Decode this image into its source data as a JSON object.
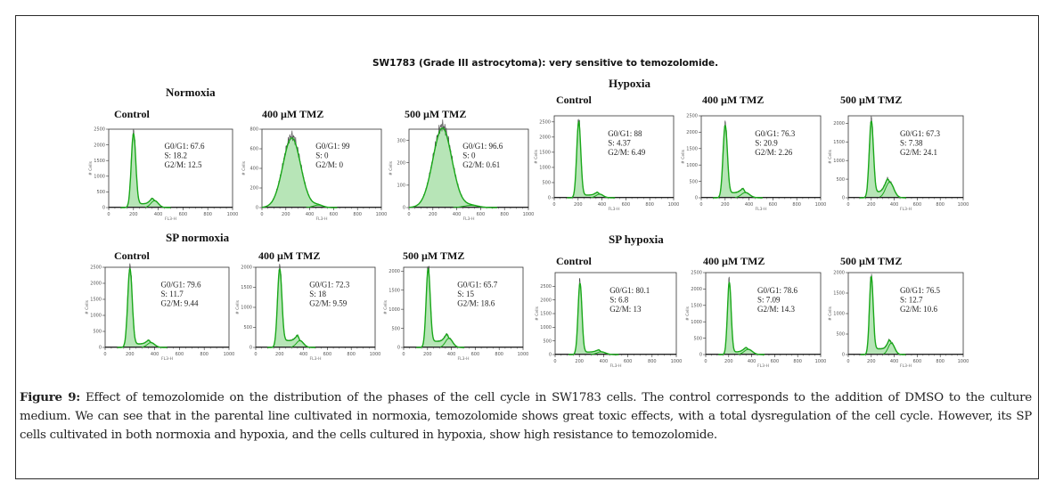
{
  "figure": {
    "main_title": "SW1783 (Grade III astrocytoma): very sensitive to temozolomide.",
    "caption_label": "Figure 9:",
    "caption_text": " Effect of temozolomide on the distribution of the phases of the cell cycle in SW1783 cells. The control corresponds to the addition of DMSO to the culture medium. We can see that in the parental line cultivated in normoxia, temozolomide shows great toxic effects, with a total dysregulation of the cell cycle. However, its SP cells cultivated in both normoxia and hypoxia, and the cells cultured in hypoxia, show high resistance to temozolomide."
  },
  "colors": {
    "fill_green": "#9fdc9f",
    "line_green": "#1aa81a",
    "raw_line": "#444444",
    "axis": "#333333"
  },
  "chart_data": [
    {
      "type": "area",
      "group": "Normoxia",
      "panel": "Control",
      "xlabel": "FL3-H",
      "ylabel": "# Cells",
      "xlim": [
        0,
        1000
      ],
      "ylim": [
        0,
        2500
      ],
      "xticks": [
        0,
        200,
        400,
        600,
        800,
        1000
      ],
      "yticks": [
        0,
        500,
        1000,
        1500,
        2000,
        2500
      ],
      "peaks": [
        {
          "x": 200,
          "y": 2350,
          "w": 18
        },
        {
          "x": 370,
          "y": 220,
          "w": 30
        }
      ],
      "s_phase_level": 120,
      "stats": {
        "G0/G1": 67.6,
        "S": 18.2,
        "G2/M": 12.5
      }
    },
    {
      "type": "area",
      "group": "Normoxia",
      "panel": "400 µM TMZ",
      "xlabel": "FL3-H",
      "ylabel": "# Cells",
      "xlim": [
        0,
        1000
      ],
      "ylim": [
        0,
        800
      ],
      "xticks": [
        0,
        200,
        400,
        600,
        800,
        1000
      ],
      "yticks": [
        0,
        200,
        400,
        600,
        800
      ],
      "peaks": [
        {
          "x": 250,
          "y": 710,
          "w": 75
        },
        {
          "x": 470,
          "y": 25,
          "w": 40
        }
      ],
      "s_phase_level": 0,
      "stats": {
        "G0/G1": 99,
        "S": 0,
        "G2/M": 0
      }
    },
    {
      "type": "area",
      "group": "Normoxia",
      "panel": "500 µM TMZ",
      "xlabel": "FL3-H",
      "ylabel": "# Cells",
      "xlim": [
        0,
        1000
      ],
      "ylim": [
        0,
        350
      ],
      "xticks": [
        0,
        200,
        400,
        600,
        800,
        1000
      ],
      "yticks": [
        0,
        100,
        200,
        300
      ],
      "peaks": [
        {
          "x": 280,
          "y": 355,
          "w": 80
        },
        {
          "x": 520,
          "y": 10,
          "w": 60
        }
      ],
      "s_phase_level": 0,
      "stats": {
        "G0/G1": 96.6,
        "S": 0,
        "G2/M": 0.61
      }
    },
    {
      "type": "area",
      "group": "Hypoxia",
      "panel": "Control",
      "xlabel": "FL3-H",
      "ylabel": "# Cells",
      "xlim": [
        0,
        1000
      ],
      "ylim": [
        0,
        2700
      ],
      "xticks": [
        0,
        200,
        400,
        600,
        800,
        1000
      ],
      "yticks": [
        0,
        500,
        1000,
        1500,
        2000,
        2500
      ],
      "peaks": [
        {
          "x": 205,
          "y": 2500,
          "w": 17
        },
        {
          "x": 380,
          "y": 120,
          "w": 30
        }
      ],
      "s_phase_level": 90,
      "stats": {
        "G0/G1": 88,
        "S": 4.37,
        "G2/M": 6.49
      }
    },
    {
      "type": "area",
      "group": "Hypoxia",
      "panel": "400 µM TMZ",
      "xlabel": "FL3-H",
      "ylabel": "# Cells",
      "xlim": [
        0,
        1000
      ],
      "ylim": [
        0,
        2500
      ],
      "xticks": [
        0,
        200,
        400,
        600,
        800,
        1000
      ],
      "yticks": [
        0,
        500,
        1000,
        1500,
        2000,
        2500
      ],
      "peaks": [
        {
          "x": 200,
          "y": 2200,
          "w": 18
        },
        {
          "x": 370,
          "y": 160,
          "w": 35
        }
      ],
      "s_phase_level": 150,
      "stats": {
        "G0/G1": 76.3,
        "S": 20.9,
        "G2/M": 2.26
      }
    },
    {
      "type": "area",
      "group": "Hypoxia",
      "panel": "500 µM TMZ",
      "xlabel": "FL3-H",
      "ylabel": "# Cells",
      "xlim": [
        0,
        1000
      ],
      "ylim": [
        0,
        2200
      ],
      "xticks": [
        0,
        200,
        400,
        600,
        800,
        1000
      ],
      "yticks": [
        0,
        500,
        1000,
        1500,
        2000
      ],
      "peaks": [
        {
          "x": 200,
          "y": 2050,
          "w": 18
        },
        {
          "x": 360,
          "y": 420,
          "w": 35
        }
      ],
      "s_phase_level": 150,
      "stats": {
        "G0/G1": 67.3,
        "S": 7.38,
        "G2/M": 24.1
      }
    },
    {
      "type": "area",
      "group": "SP normoxia",
      "panel": "Control",
      "xlabel": "FL3-H",
      "ylabel": "# Cells",
      "xlim": [
        0,
        1000
      ],
      "ylim": [
        0,
        2500
      ],
      "xticks": [
        0,
        200,
        400,
        600,
        800,
        1000
      ],
      "yticks": [
        0,
        500,
        1000,
        1500,
        2000,
        2500
      ],
      "peaks": [
        {
          "x": 200,
          "y": 2450,
          "w": 18
        },
        {
          "x": 370,
          "y": 150,
          "w": 30
        }
      ],
      "s_phase_level": 110,
      "stats": {
        "G0/G1": 79.6,
        "S": 11.7,
        "G2/M": 9.44
      }
    },
    {
      "type": "area",
      "group": "SP normoxia",
      "panel": "400 µM TMZ",
      "xlabel": "FL3-H",
      "ylabel": "# Cells",
      "xlim": [
        0,
        1000
      ],
      "ylim": [
        0,
        2000
      ],
      "xticks": [
        0,
        200,
        400,
        600,
        800,
        1000
      ],
      "yticks": [
        0,
        500,
        1000,
        1500,
        2000
      ],
      "peaks": [
        {
          "x": 200,
          "y": 1950,
          "w": 18
        },
        {
          "x": 370,
          "y": 170,
          "w": 30
        }
      ],
      "s_phase_level": 170,
      "stats": {
        "G0/G1": 72.3,
        "S": 18,
        "G2/M": 9.59
      }
    },
    {
      "type": "area",
      "group": "SP normoxia",
      "panel": "500 µM TMZ",
      "xlabel": "FL3-H",
      "ylabel": "# Cells",
      "xlim": [
        0,
        1000
      ],
      "ylim": [
        0,
        2100
      ],
      "xticks": [
        0,
        200,
        400,
        600,
        800,
        1000
      ],
      "yticks": [
        0,
        500,
        1000,
        1500,
        2000
      ],
      "peaks": [
        {
          "x": 205,
          "y": 2050,
          "w": 17
        },
        {
          "x": 380,
          "y": 240,
          "w": 30
        }
      ],
      "s_phase_level": 160,
      "stats": {
        "G0/G1": 65.7,
        "S": 15,
        "G2/M": 18.6
      }
    },
    {
      "type": "area",
      "group": "SP hypoxia",
      "panel": "Control",
      "xlabel": "FL3-H",
      "ylabel": "# Cells",
      "xlim": [
        0,
        1000
      ],
      "ylim": [
        0,
        3000
      ],
      "xticks": [
        0,
        200,
        400,
        600,
        800,
        1000
      ],
      "yticks": [
        0,
        500,
        1000,
        1500,
        2000,
        2500
      ],
      "peaks": [
        {
          "x": 205,
          "y": 2600,
          "w": 16
        },
        {
          "x": 380,
          "y": 100,
          "w": 35
        }
      ],
      "s_phase_level": 90,
      "stats": {
        "G0/G1": 80.1,
        "S": 6.8,
        "G2/M": 13
      }
    },
    {
      "type": "area",
      "group": "SP hypoxia",
      "panel": "400 µM TMZ",
      "xlabel": "FL3-H",
      "ylabel": "# Cells",
      "xlim": [
        0,
        1000
      ],
      "ylim": [
        0,
        2500
      ],
      "xticks": [
        0,
        200,
        400,
        600,
        800,
        1000
      ],
      "yticks": [
        0,
        500,
        1000,
        1500,
        2000,
        2500
      ],
      "peaks": [
        {
          "x": 205,
          "y": 2200,
          "w": 16
        },
        {
          "x": 370,
          "y": 160,
          "w": 35
        }
      ],
      "s_phase_level": 80,
      "stats": {
        "G0/G1": 78.6,
        "S": 7.09,
        "G2/M": 14.3
      }
    },
    {
      "type": "area",
      "group": "SP hypoxia",
      "panel": "500 µM TMZ",
      "xlabel": "FL3-H",
      "ylabel": "# Cells",
      "xlim": [
        0,
        1000
      ],
      "ylim": [
        0,
        2000
      ],
      "xticks": [
        0,
        200,
        400,
        600,
        800,
        1000
      ],
      "yticks": [
        0,
        500,
        1000,
        1500,
        2000
      ],
      "peaks": [
        {
          "x": 200,
          "y": 1900,
          "w": 16
        },
        {
          "x": 375,
          "y": 280,
          "w": 28
        }
      ],
      "s_phase_level": 140,
      "stats": {
        "G0/G1": 76.5,
        "S": 12.7,
        "G2/M": 10.6
      }
    }
  ]
}
